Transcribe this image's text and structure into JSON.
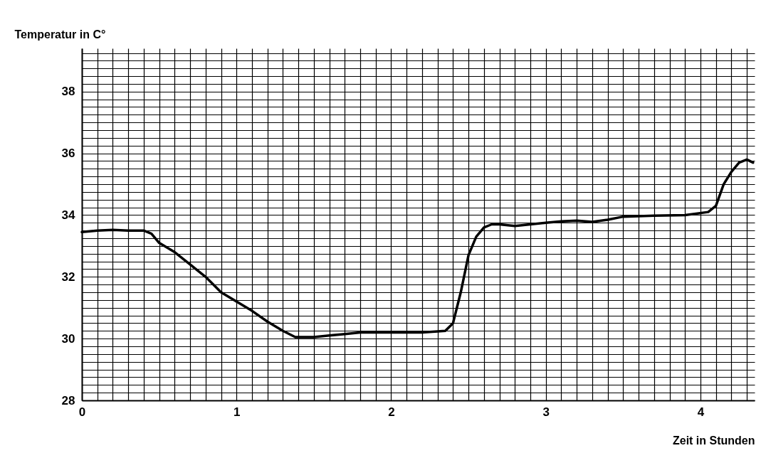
{
  "chart_data": {
    "type": "line",
    "xlabel": "Zeit in Stunden",
    "ylabel": "Temperatur in C°",
    "grid": true,
    "legend": false,
    "marker": "none",
    "line_style": "solid",
    "xlim": [
      0,
      4.35
    ],
    "ylim": [
      28,
      39.4
    ],
    "xticks": [
      0,
      {
        "value": 0.1,
        "label": null
      },
      {
        "value": 0.2,
        "label": null
      },
      {
        "value": 0.3,
        "label": null
      },
      {
        "value": 0.4,
        "label": null
      },
      {
        "value": 0.5,
        "label": null
      },
      {
        "value": 0.6,
        "label": null
      },
      {
        "value": 0.7,
        "label": null
      },
      {
        "value": 0.8,
        "label": null
      },
      {
        "value": 0.9,
        "label": null
      },
      1,
      {
        "value": 1.1,
        "label": null
      },
      {
        "value": 1.2,
        "label": null
      },
      {
        "value": 1.3,
        "label": null
      },
      {
        "value": 1.4,
        "label": null
      },
      {
        "value": 1.5,
        "label": null
      },
      {
        "value": 1.6,
        "label": null
      },
      {
        "value": 1.7,
        "label": null
      },
      {
        "value": 1.8,
        "label": null
      },
      {
        "value": 1.9,
        "label": null
      },
      2,
      {
        "value": 2.1,
        "label": null
      },
      {
        "value": 2.2,
        "label": null
      },
      {
        "value": 2.3,
        "label": null
      },
      {
        "value": 2.4,
        "label": null
      },
      {
        "value": 2.5,
        "label": null
      },
      {
        "value": 2.6,
        "label": null
      },
      {
        "value": 2.7,
        "label": null
      },
      {
        "value": 2.8,
        "label": null
      },
      {
        "value": 2.9,
        "label": null
      },
      3,
      {
        "value": 3.1,
        "label": null
      },
      {
        "value": 3.2,
        "label": null
      },
      {
        "value": 3.3,
        "label": null
      },
      {
        "value": 3.4,
        "label": null
      },
      {
        "value": 3.5,
        "label": null
      },
      {
        "value": 3.6,
        "label": null
      },
      {
        "value": 3.7,
        "label": null
      },
      {
        "value": 3.8,
        "label": null
      },
      {
        "value": 3.9,
        "label": null
      },
      4,
      {
        "value": 4.1,
        "label": null
      },
      {
        "value": 4.2,
        "label": null
      },
      {
        "value": 4.3,
        "label": null
      }
    ],
    "yticks": [
      28,
      {
        "value": 28.25,
        "label": null
      },
      {
        "value": 28.5,
        "label": null
      },
      {
        "value": 28.75,
        "label": null
      },
      {
        "value": 29,
        "label": null
      },
      {
        "value": 29.25,
        "label": null
      },
      {
        "value": 29.5,
        "label": null
      },
      {
        "value": 29.75,
        "label": null
      },
      30,
      {
        "value": 30.25,
        "label": null
      },
      {
        "value": 30.5,
        "label": null
      },
      {
        "value": 30.75,
        "label": null
      },
      {
        "value": 31,
        "label": null
      },
      {
        "value": 31.25,
        "label": null
      },
      {
        "value": 31.5,
        "label": null
      },
      {
        "value": 31.75,
        "label": null
      },
      32,
      {
        "value": 32.25,
        "label": null
      },
      {
        "value": 32.5,
        "label": null
      },
      {
        "value": 32.75,
        "label": null
      },
      {
        "value": 33,
        "label": null
      },
      {
        "value": 33.25,
        "label": null
      },
      {
        "value": 33.5,
        "label": null
      },
      {
        "value": 33.75,
        "label": null
      },
      34,
      {
        "value": 34.25,
        "label": null
      },
      {
        "value": 34.5,
        "label": null
      },
      {
        "value": 34.75,
        "label": null
      },
      {
        "value": 35,
        "label": null
      },
      {
        "value": 35.25,
        "label": null
      },
      {
        "value": 35.5,
        "label": null
      },
      {
        "value": 35.75,
        "label": null
      },
      36,
      {
        "value": 36.25,
        "label": null
      },
      {
        "value": 36.5,
        "label": null
      },
      {
        "value": 36.75,
        "label": null
      },
      {
        "value": 37,
        "label": null
      },
      {
        "value": 37.25,
        "label": null
      },
      {
        "value": 37.5,
        "label": null
      },
      {
        "value": 37.75,
        "label": null
      },
      38,
      {
        "value": 38.25,
        "label": null
      },
      {
        "value": 38.5,
        "label": null
      },
      {
        "value": 38.75,
        "label": null
      },
      {
        "value": 39,
        "label": null
      },
      {
        "value": 39.25,
        "label": null
      }
    ],
    "series": [
      {
        "color": "#000000",
        "x": [
          0,
          0.1,
          0.2,
          0.3,
          0.4,
          0.45,
          0.5,
          0.6,
          0.7,
          0.8,
          0.9,
          1.0,
          1.1,
          1.2,
          1.3,
          1.38,
          1.5,
          1.6,
          1.7,
          1.8,
          2.0,
          2.2,
          2.35,
          2.4,
          2.45,
          2.5,
          2.55,
          2.6,
          2.65,
          2.7,
          2.8,
          2.9,
          3.0,
          3.1,
          3.2,
          3.3,
          3.4,
          3.5,
          3.7,
          3.9,
          4.05,
          4.1,
          4.15,
          4.2,
          4.25,
          4.3,
          4.34
        ],
        "values": [
          33.45,
          33.5,
          33.52,
          33.5,
          33.5,
          33.4,
          33.1,
          32.8,
          32.4,
          32.0,
          31.5,
          31.2,
          30.9,
          30.55,
          30.25,
          30.05,
          30.05,
          30.1,
          30.15,
          30.2,
          30.2,
          30.2,
          30.25,
          30.5,
          31.5,
          32.7,
          33.3,
          33.6,
          33.7,
          33.7,
          33.65,
          33.7,
          33.75,
          33.8,
          33.82,
          33.78,
          33.85,
          33.95,
          33.98,
          34.0,
          34.1,
          34.3,
          35.0,
          35.4,
          35.7,
          35.8,
          35.7
        ]
      }
    ]
  }
}
